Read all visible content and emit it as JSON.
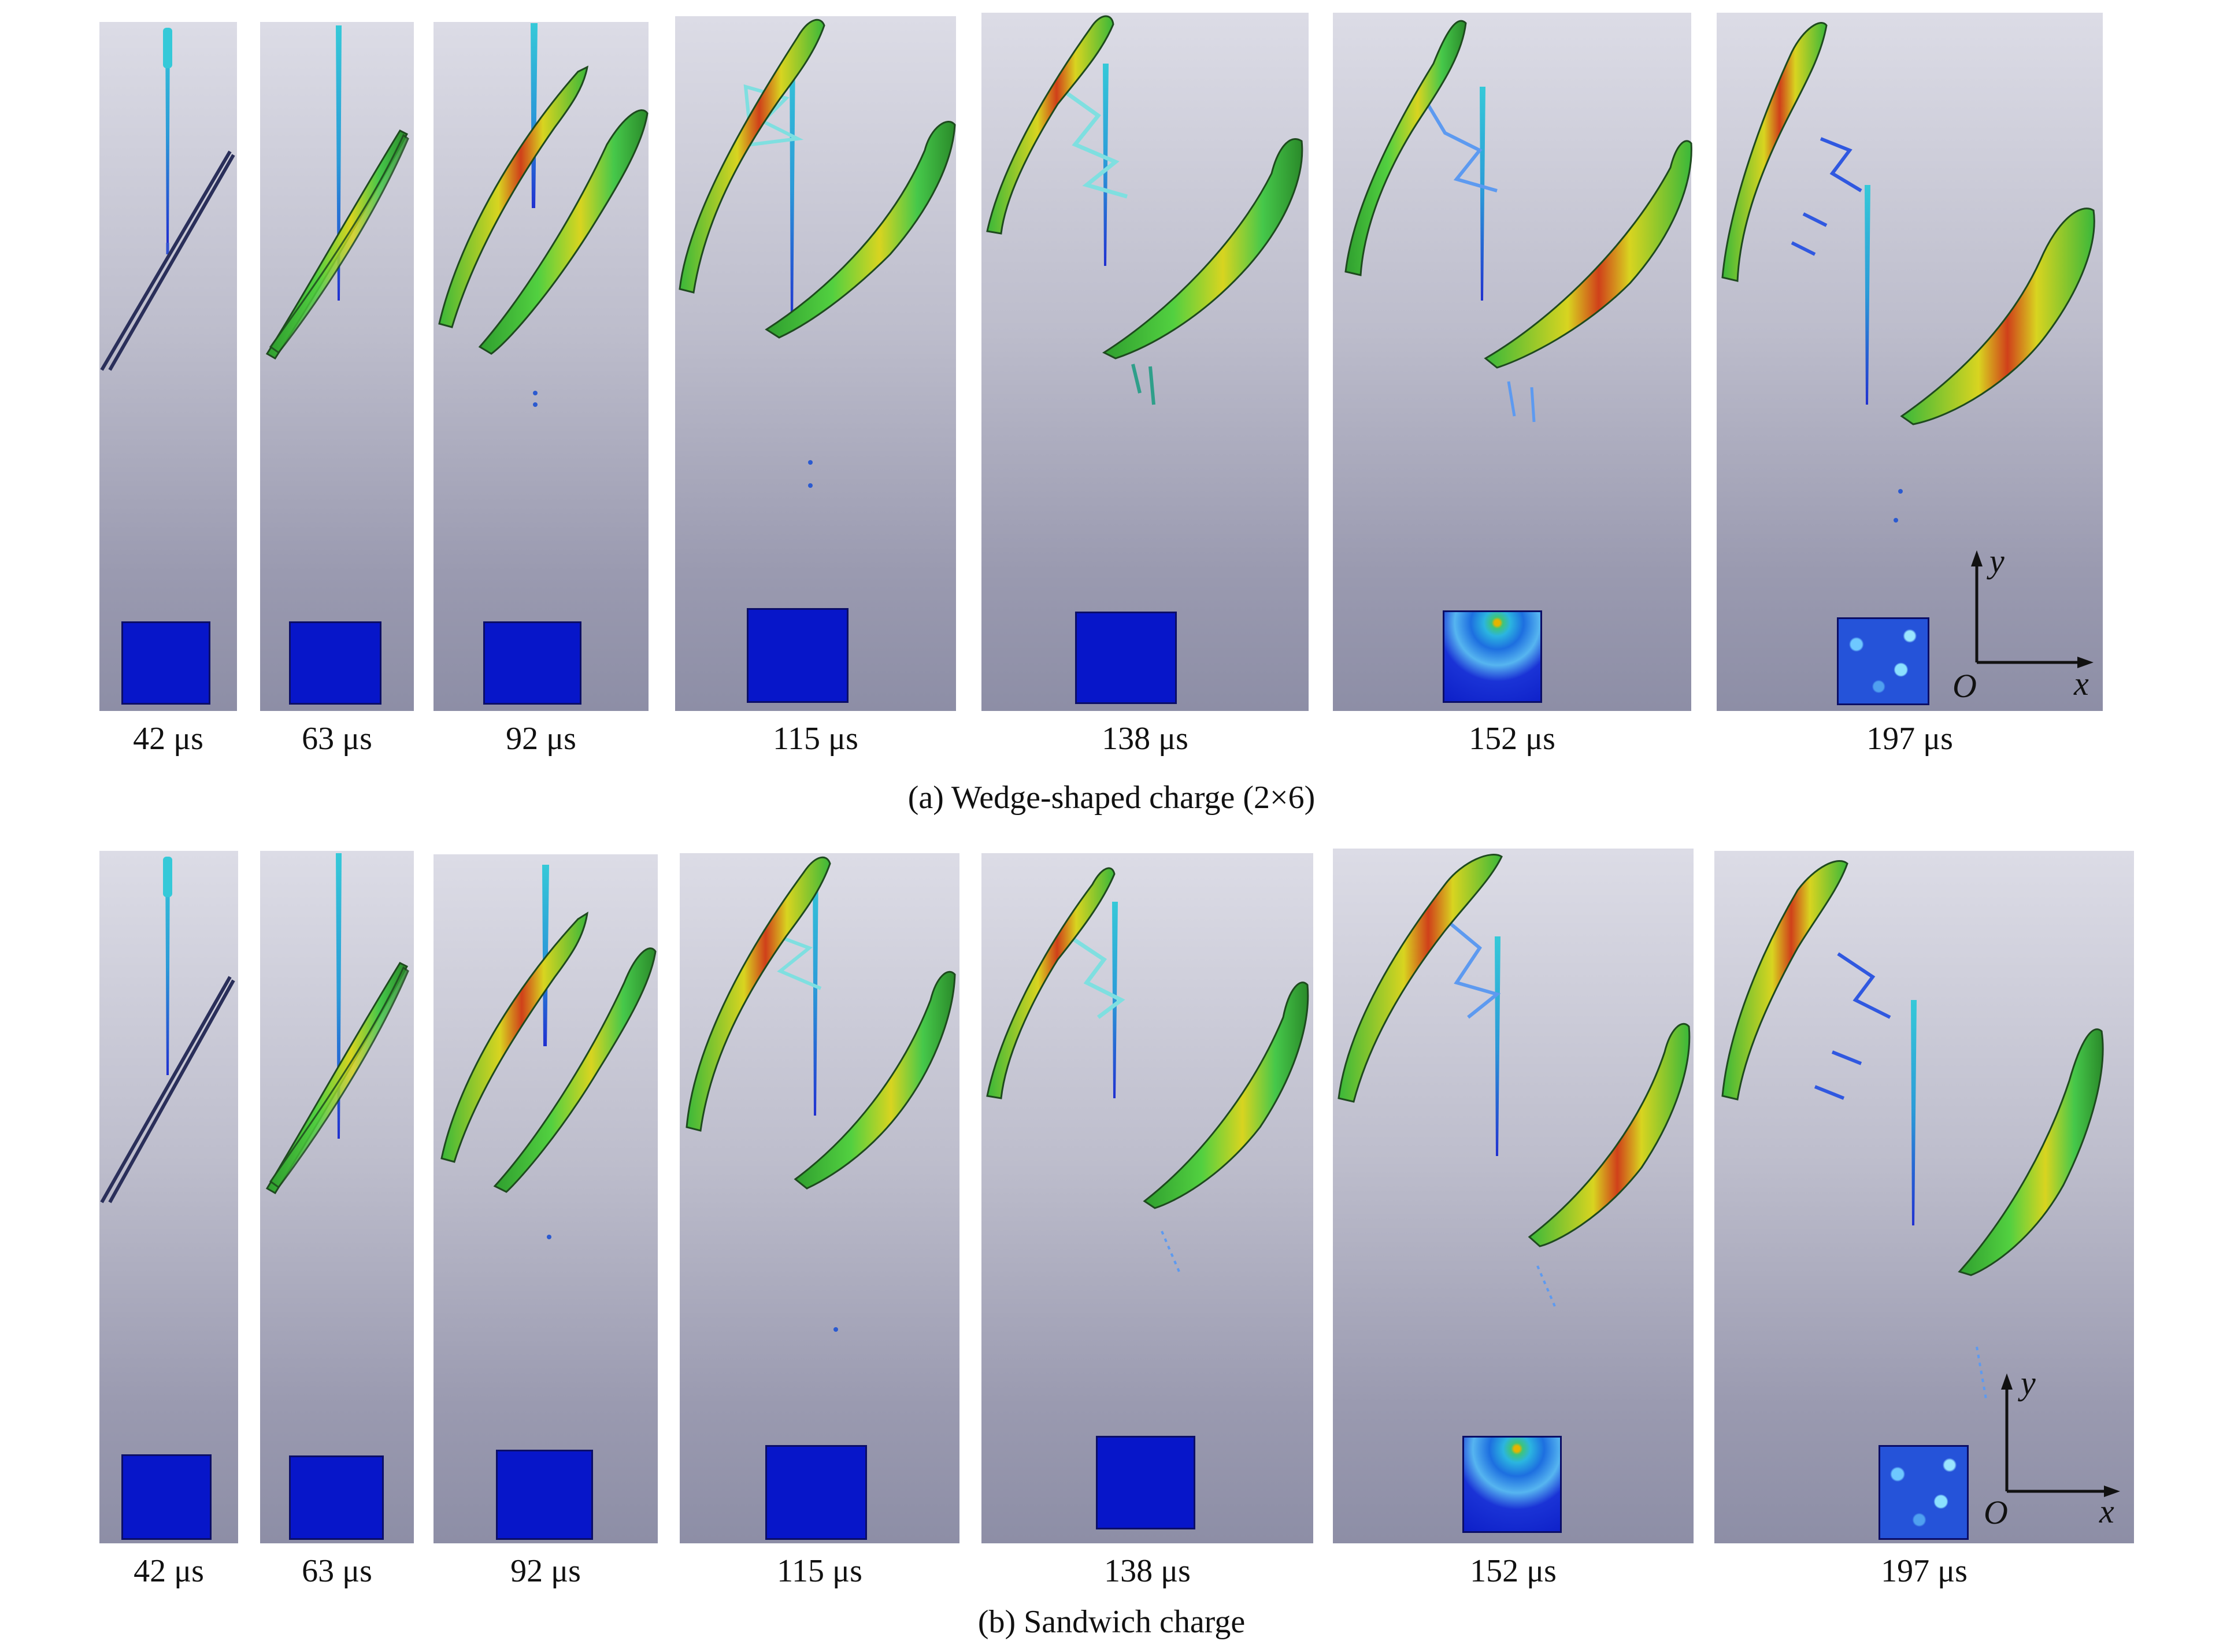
{
  "panels": [
    {
      "caption": "(a) Wedge-shaped charge (2×6)",
      "frames": [
        {
          "time": "42 μs"
        },
        {
          "time": "63 μs"
        },
        {
          "time": "92 μs"
        },
        {
          "time": "115 μs"
        },
        {
          "time": "138 μs"
        },
        {
          "time": "152 μs"
        },
        {
          "time": "197 μs"
        }
      ],
      "axes": {
        "y": "y",
        "x": "x",
        "origin": "O"
      }
    },
    {
      "caption": "(b) Sandwich charge",
      "frames": [
        {
          "time": "42 μs"
        },
        {
          "time": "63 μs"
        },
        {
          "time": "92 μs"
        },
        {
          "time": "115 μs"
        },
        {
          "time": "138 μs"
        },
        {
          "time": "152 μs"
        },
        {
          "time": "197 μs"
        }
      ],
      "axes": {
        "y": "y",
        "x": "x",
        "origin": "O"
      }
    }
  ],
  "colors": {
    "background_top": "#dcdce6",
    "background_bottom": "#8d8ea6",
    "target": "#0716c9",
    "plate_green": "#3ec43e",
    "plate_yellow": "#d8d420",
    "plate_red": "#d0401a",
    "jet_cyan": "#35c9d8",
    "jet_blue": "#2030d0"
  }
}
